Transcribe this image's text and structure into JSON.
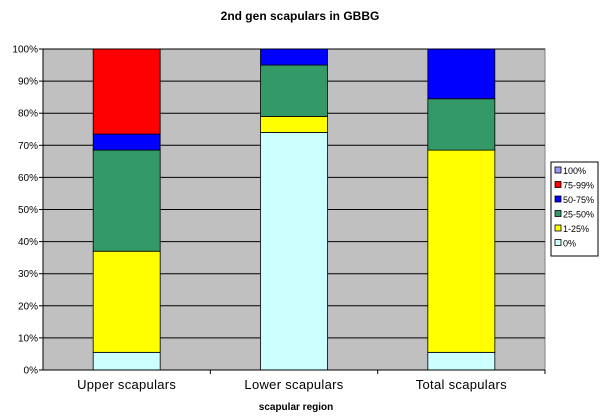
{
  "chart_data": {
    "type": "bar",
    "stacked": true,
    "normalized": true,
    "title": "2nd gen scapulars in GBBG",
    "xlabel": "scapular region",
    "ylabel": "",
    "ylim": [
      0,
      100
    ],
    "y_ticks": [
      "0%",
      "10%",
      "20%",
      "30%",
      "40%",
      "50%",
      "60%",
      "70%",
      "80%",
      "90%",
      "100%"
    ],
    "grid": true,
    "plot_background": "#c0c0c0",
    "legend_position": "right",
    "categories": [
      "Upper scapulars",
      "Lower scapulars",
      "Total scapulars"
    ],
    "series": [
      {
        "name": "0%",
        "color": "#ccffff",
        "values": [
          5.5,
          74,
          5.5
        ]
      },
      {
        "name": "1-25%",
        "color": "#ffff00",
        "values": [
          31.5,
          5,
          63
        ]
      },
      {
        "name": "25-50%",
        "color": "#339966",
        "values": [
          31.5,
          16,
          16
        ]
      },
      {
        "name": "50-75%",
        "color": "#0000ff",
        "values": [
          5,
          5,
          15.5
        ]
      },
      {
        "name": "75-99%",
        "color": "#ff0000",
        "values": [
          26.5,
          0,
          0
        ]
      },
      {
        "name": "100%",
        "color": "#9999ff",
        "values": [
          0,
          0,
          0
        ]
      }
    ]
  }
}
